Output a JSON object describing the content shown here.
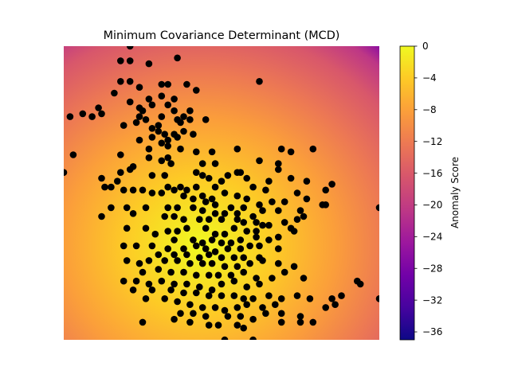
{
  "chart_data": {
    "type": "scatter",
    "title": "Minimum Covariance Determinant (MCD)",
    "xlabel": "",
    "ylabel": "",
    "colorbar": {
      "label": "Anomaly Score",
      "range": [
        -37,
        0
      ],
      "ticks": [
        "0",
        "−4",
        "−8",
        "−12",
        "−16",
        "−20",
        "−24",
        "−28",
        "−32",
        "−36"
      ],
      "tick_values": [
        0,
        -4,
        -8,
        -12,
        -16,
        -20,
        -24,
        -28,
        -32,
        -36
      ],
      "colormap": "plasma"
    },
    "background": "heatmap of anomaly score (max near lower-centre, decreasing toward upper-right)",
    "point_color": "#000000",
    "grid": false,
    "axes_visible": false,
    "xlim": [
      0,
      100
    ],
    "ylim": [
      0,
      100
    ],
    "points": [
      [
        21,
        100
      ],
      [
        18,
        95
      ],
      [
        21,
        95
      ],
      [
        36,
        96
      ],
      [
        27,
        94
      ],
      [
        18,
        88
      ],
      [
        21,
        88
      ],
      [
        16,
        84
      ],
      [
        24,
        86
      ],
      [
        31,
        87
      ],
      [
        33,
        87
      ],
      [
        39,
        87
      ],
      [
        27,
        82
      ],
      [
        31,
        83
      ],
      [
        35,
        82
      ],
      [
        42,
        85
      ],
      [
        62,
        88
      ],
      [
        21,
        81
      ],
      [
        24,
        79
      ],
      [
        28,
        80
      ],
      [
        33,
        80
      ],
      [
        11,
        79
      ],
      [
        12,
        77
      ],
      [
        25,
        78
      ],
      [
        35,
        78
      ],
      [
        40,
        78
      ],
      [
        6,
        77
      ],
      [
        9,
        76
      ],
      [
        2,
        76
      ],
      [
        24,
        76
      ],
      [
        26,
        75
      ],
      [
        31,
        76
      ],
      [
        36,
        75
      ],
      [
        38,
        76
      ],
      [
        28,
        72
      ],
      [
        19,
        73
      ],
      [
        23,
        74
      ],
      [
        30,
        73
      ],
      [
        37,
        74
      ],
      [
        40,
        75
      ],
      [
        45,
        75
      ],
      [
        35,
        70
      ],
      [
        38,
        71
      ],
      [
        41,
        70
      ],
      [
        30,
        71
      ],
      [
        32,
        70
      ],
      [
        33,
        68
      ],
      [
        36,
        69
      ],
      [
        24,
        68
      ],
      [
        28,
        69
      ],
      [
        31,
        67
      ],
      [
        33,
        66
      ],
      [
        37,
        65
      ],
      [
        33,
        62
      ],
      [
        27,
        65
      ],
      [
        27,
        62
      ],
      [
        42,
        64
      ],
      [
        47,
        64
      ],
      [
        55,
        65
      ],
      [
        44,
        60
      ],
      [
        48,
        60
      ],
      [
        62,
        61
      ],
      [
        69,
        65
      ],
      [
        72,
        64
      ],
      [
        79,
        65
      ],
      [
        68,
        60
      ],
      [
        68,
        58
      ],
      [
        3,
        63
      ],
      [
        18,
        63
      ],
      [
        22,
        59
      ],
      [
        31,
        61
      ],
      [
        34,
        60
      ],
      [
        18,
        57
      ],
      [
        21,
        58
      ],
      [
        28,
        56
      ],
      [
        32,
        56
      ],
      [
        42,
        57
      ],
      [
        44,
        56
      ],
      [
        46,
        55
      ],
      [
        50,
        54
      ],
      [
        55,
        57
      ],
      [
        0,
        57
      ],
      [
        17,
        54
      ],
      [
        12,
        55
      ],
      [
        15,
        52
      ],
      [
        22,
        51
      ],
      [
        33,
        52
      ],
      [
        37,
        52
      ],
      [
        42,
        52
      ],
      [
        48,
        52
      ],
      [
        52,
        56
      ],
      [
        56,
        57
      ],
      [
        58,
        55
      ],
      [
        65,
        54
      ],
      [
        72,
        55
      ],
      [
        77,
        54
      ],
      [
        85,
        53
      ],
      [
        19,
        51
      ],
      [
        25,
        51
      ],
      [
        28,
        50
      ],
      [
        31,
        50
      ],
      [
        35,
        51
      ],
      [
        39,
        51
      ],
      [
        44,
        49
      ],
      [
        47,
        48
      ],
      [
        51,
        50
      ],
      [
        55,
        49
      ],
      [
        58,
        48
      ],
      [
        60,
        52
      ],
      [
        64,
        51
      ],
      [
        74,
        50
      ],
      [
        83,
        51
      ],
      [
        38,
        49
      ],
      [
        41,
        48
      ],
      [
        45,
        47
      ],
      [
        48,
        46
      ],
      [
        53,
        45
      ],
      [
        57,
        45
      ],
      [
        62,
        46
      ],
      [
        66,
        47
      ],
      [
        70,
        47
      ],
      [
        77,
        48
      ],
      [
        82,
        46
      ],
      [
        13,
        52
      ],
      [
        15,
        45
      ],
      [
        20,
        45
      ],
      [
        26,
        45
      ],
      [
        33,
        45
      ],
      [
        36,
        45
      ],
      [
        41,
        45
      ],
      [
        44,
        44
      ],
      [
        48,
        43
      ],
      [
        51,
        43
      ],
      [
        55,
        43
      ],
      [
        60,
        42
      ],
      [
        63,
        44
      ],
      [
        68,
        44
      ],
      [
        75,
        44
      ],
      [
        83,
        46
      ],
      [
        100,
        45
      ],
      [
        12,
        42
      ],
      [
        22,
        43
      ],
      [
        32,
        42
      ],
      [
        35,
        42
      ],
      [
        38,
        41
      ],
      [
        43,
        41
      ],
      [
        46,
        41
      ],
      [
        50,
        41
      ],
      [
        55,
        41
      ],
      [
        57,
        40
      ],
      [
        61,
        40
      ],
      [
        70,
        40
      ],
      [
        74,
        41
      ],
      [
        76,
        42
      ],
      [
        20,
        38
      ],
      [
        26,
        38
      ],
      [
        33,
        37
      ],
      [
        36,
        37
      ],
      [
        39,
        38
      ],
      [
        45,
        38
      ],
      [
        48,
        36
      ],
      [
        51,
        36
      ],
      [
        54,
        38
      ],
      [
        58,
        37
      ],
      [
        61,
        37
      ],
      [
        63,
        39
      ],
      [
        65,
        39
      ],
      [
        72,
        38
      ],
      [
        73,
        37
      ],
      [
        29,
        36
      ],
      [
        35,
        34
      ],
      [
        41,
        34
      ],
      [
        44,
        33
      ],
      [
        47,
        34
      ],
      [
        50,
        33
      ],
      [
        53,
        33
      ],
      [
        56,
        34
      ],
      [
        61,
        35
      ],
      [
        68,
        35
      ],
      [
        19,
        32
      ],
      [
        23,
        32
      ],
      [
        28,
        32
      ],
      [
        33,
        31
      ],
      [
        38,
        31
      ],
      [
        42,
        32
      ],
      [
        45,
        31
      ],
      [
        48,
        30
      ],
      [
        52,
        31
      ],
      [
        56,
        31
      ],
      [
        59,
        32
      ],
      [
        62,
        32
      ],
      [
        65,
        34
      ],
      [
        68,
        31
      ],
      [
        30,
        29
      ],
      [
        35,
        29
      ],
      [
        39,
        29
      ],
      [
        43,
        28
      ],
      [
        46,
        29
      ],
      [
        50,
        28
      ],
      [
        54,
        28
      ],
      [
        57,
        28
      ],
      [
        62,
        28
      ],
      [
        20,
        27
      ],
      [
        24,
        26
      ],
      [
        27,
        27
      ],
      [
        32,
        27
      ],
      [
        36,
        27
      ],
      [
        40,
        26
      ],
      [
        44,
        26
      ],
      [
        47,
        26
      ],
      [
        51,
        25
      ],
      [
        55,
        25
      ],
      [
        59,
        26
      ],
      [
        63,
        27
      ],
      [
        68,
        26
      ],
      [
        73,
        25
      ],
      [
        25,
        23
      ],
      [
        30,
        24
      ],
      [
        34,
        23
      ],
      [
        38,
        23
      ],
      [
        42,
        22
      ],
      [
        46,
        22
      ],
      [
        49,
        22
      ],
      [
        53,
        22
      ],
      [
        57,
        23
      ],
      [
        61,
        21
      ],
      [
        66,
        21
      ],
      [
        70,
        23
      ],
      [
        76,
        21
      ],
      [
        93,
        20
      ],
      [
        19,
        20
      ],
      [
        23,
        20
      ],
      [
        27,
        19
      ],
      [
        31,
        20
      ],
      [
        35,
        19
      ],
      [
        39,
        19
      ],
      [
        43,
        18
      ],
      [
        47,
        17
      ],
      [
        50,
        19
      ],
      [
        54,
        20
      ],
      [
        58,
        18
      ],
      [
        62,
        19
      ],
      [
        94,
        19
      ],
      [
        22,
        17
      ],
      [
        28,
        17
      ],
      [
        34,
        17
      ],
      [
        38,
        16
      ],
      [
        42,
        16
      ],
      [
        46,
        15
      ],
      [
        50,
        15
      ],
      [
        54,
        15
      ],
      [
        57,
        14
      ],
      [
        60,
        14
      ],
      [
        65,
        15
      ],
      [
        69,
        14
      ],
      [
        74,
        15
      ],
      [
        78,
        14
      ],
      [
        85,
        14
      ],
      [
        88,
        15
      ],
      [
        100,
        14
      ],
      [
        26,
        14
      ],
      [
        32,
        14
      ],
      [
        36,
        13
      ],
      [
        40,
        12
      ],
      [
        44,
        11
      ],
      [
        48,
        11
      ],
      [
        51,
        10
      ],
      [
        55,
        11
      ],
      [
        58,
        12
      ],
      [
        63,
        11
      ],
      [
        67,
        12
      ],
      [
        83,
        11
      ],
      [
        86,
        12
      ],
      [
        37,
        9
      ],
      [
        41,
        9
      ],
      [
        45,
        8
      ],
      [
        52,
        8
      ],
      [
        56,
        8
      ],
      [
        60,
        7
      ],
      [
        64,
        9
      ],
      [
        69,
        9
      ],
      [
        75,
        8
      ],
      [
        35,
        7
      ],
      [
        40,
        6
      ],
      [
        46,
        5
      ],
      [
        49,
        5
      ],
      [
        55,
        5
      ],
      [
        57,
        4
      ],
      [
        69,
        6
      ],
      [
        75,
        6
      ],
      [
        79,
        6
      ],
      [
        25,
        6
      ],
      [
        51,
        0
      ],
      [
        60,
        0
      ]
    ]
  }
}
